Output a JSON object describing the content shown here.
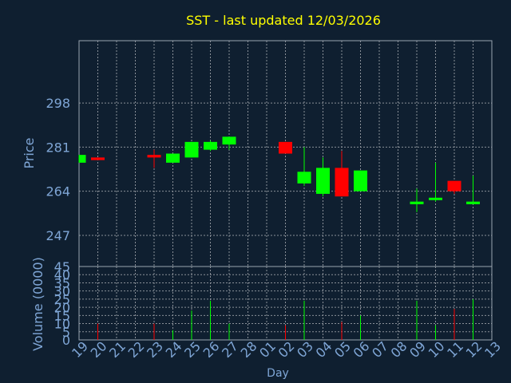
{
  "chart_data": [
    {
      "type": "candlestick",
      "title": "SST - last updated 12/03/2026",
      "ylabel": "Price",
      "xlabel": "Day",
      "ylim": [
        235,
        322
      ],
      "yticks": [
        298,
        281,
        264,
        247
      ],
      "grid": true,
      "x_labels": [
        "19",
        "20",
        "21",
        "22",
        "23",
        "24",
        "25",
        "26",
        "27",
        "28",
        "01",
        "02",
        "03",
        "04",
        "05",
        "06",
        "07",
        "08",
        "09",
        "10",
        "11",
        "12",
        "13"
      ],
      "candles": [
        {
          "x": 0,
          "open": 275,
          "close": 278,
          "high": 278,
          "low": 275,
          "color": "up"
        },
        {
          "x": 1,
          "open": 277,
          "close": 276,
          "high": 277,
          "low": 276,
          "color": "down"
        },
        {
          "x": 4,
          "open": 278,
          "close": 277,
          "high": 280,
          "low": 273,
          "color": "down"
        },
        {
          "x": 5,
          "open": 275,
          "close": 278.5,
          "high": 278.5,
          "low": 275,
          "color": "up"
        },
        {
          "x": 6,
          "open": 277,
          "close": 283,
          "high": 283,
          "low": 277,
          "color": "up"
        },
        {
          "x": 7,
          "open": 280,
          "close": 283,
          "high": 283.5,
          "low": 279.5,
          "color": "up"
        },
        {
          "x": 8,
          "open": 282,
          "close": 285,
          "high": 285,
          "low": 280,
          "color": "up"
        },
        {
          "x": 11,
          "open": 283,
          "close": 278.5,
          "high": 283,
          "low": 278.5,
          "color": "down"
        },
        {
          "x": 12,
          "open": 267,
          "close": 271.5,
          "high": 281,
          "low": 266,
          "color": "up"
        },
        {
          "x": 13,
          "open": 263,
          "close": 273,
          "high": 277,
          "low": 262,
          "color": "up"
        },
        {
          "x": 14,
          "open": 273,
          "close": 262,
          "high": 279.5,
          "low": 262,
          "color": "down"
        },
        {
          "x": 15,
          "open": 264,
          "close": 272,
          "high": 272,
          "low": 264,
          "color": "up"
        },
        {
          "x": 18,
          "open": 259,
          "close": 260,
          "high": 265,
          "low": 256,
          "color": "up"
        },
        {
          "x": 19,
          "open": 261,
          "close": 261.5,
          "high": 275,
          "low": 260,
          "color": "up"
        },
        {
          "x": 20,
          "open": 268,
          "close": 264,
          "high": 268,
          "low": 263,
          "color": "down"
        },
        {
          "x": 21,
          "open": 259,
          "close": 260,
          "high": 270,
          "low": 259,
          "color": "up"
        }
      ]
    },
    {
      "type": "bar",
      "ylabel": "Volume (0000)",
      "ylim": [
        0,
        45
      ],
      "yticks": [
        0,
        5,
        10,
        15,
        20,
        25,
        30,
        35,
        40,
        45
      ],
      "grid": true,
      "bars": [
        {
          "x": 1,
          "value": 10,
          "color": "down"
        },
        {
          "x": 4,
          "value": 10,
          "color": "down"
        },
        {
          "x": 5,
          "value": 6,
          "color": "up"
        },
        {
          "x": 6,
          "value": 18,
          "color": "up"
        },
        {
          "x": 7,
          "value": 24,
          "color": "up"
        },
        {
          "x": 8,
          "value": 10,
          "color": "up"
        },
        {
          "x": 11,
          "value": 9,
          "color": "down"
        },
        {
          "x": 12,
          "value": 24,
          "color": "up"
        },
        {
          "x": 14,
          "value": 11,
          "color": "down"
        },
        {
          "x": 15,
          "value": 15,
          "color": "up"
        },
        {
          "x": 18,
          "value": 24,
          "color": "up"
        },
        {
          "x": 19,
          "value": 9,
          "color": "up"
        },
        {
          "x": 20,
          "value": 19,
          "color": "down"
        },
        {
          "x": 21,
          "value": 25,
          "color": "up"
        }
      ]
    }
  ],
  "colors": {
    "background": "#0f1f30",
    "title": "#ffff00",
    "axis_text": "#7fa6d6",
    "axis_line": "#9aa4b0",
    "grid": "#8a9098",
    "up": "#00ff00",
    "down": "#ff0000"
  }
}
